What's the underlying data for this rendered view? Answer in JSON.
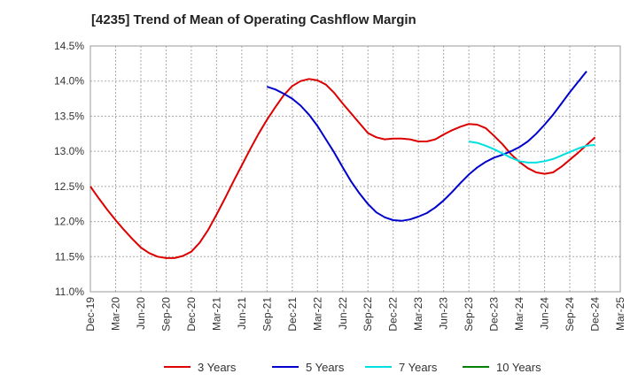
{
  "chart_data": {
    "type": "line",
    "title": "[4235]  Trend of Mean of Operating Cashflow Margin",
    "xlabel": "",
    "ylabel": "",
    "ylim": [
      11.0,
      14.5
    ],
    "y_ticks": [
      11.0,
      11.5,
      12.0,
      12.5,
      13.0,
      13.5,
      14.0,
      14.5
    ],
    "y_tick_labels": [
      "11.0%",
      "11.5%",
      "12.0%",
      "12.5%",
      "13.0%",
      "13.5%",
      "14.0%",
      "14.5%"
    ],
    "x_ticks": [
      "Dec-19",
      "Mar-20",
      "Jun-20",
      "Sep-20",
      "Dec-20",
      "Mar-21",
      "Jun-21",
      "Sep-21",
      "Dec-21",
      "Mar-22",
      "Jun-22",
      "Sep-22",
      "Dec-22",
      "Mar-23",
      "Jun-23",
      "Sep-23",
      "Dec-23",
      "Mar-24",
      "Jun-24",
      "Sep-24",
      "Dec-24",
      "Mar-25"
    ],
    "grid": true,
    "legend_position": "bottom",
    "series": [
      {
        "name": "3 Years",
        "color": "#dd0000",
        "values": [
          [
            "Dec-19",
            12.5
          ],
          [
            "Jan-20",
            12.33
          ],
          [
            "Feb-20",
            12.17
          ],
          [
            "Mar-20",
            12.02
          ],
          [
            "Apr-20",
            11.88
          ],
          [
            "May-20",
            11.75
          ],
          [
            "Jun-20",
            11.63
          ],
          [
            "Jul-20",
            11.55
          ],
          [
            "Aug-20",
            11.5
          ],
          [
            "Sep-20",
            11.48
          ],
          [
            "Oct-20",
            11.48
          ],
          [
            "Nov-20",
            11.51
          ],
          [
            "Dec-20",
            11.57
          ],
          [
            "Jan-21",
            11.7
          ],
          [
            "Feb-21",
            11.88
          ],
          [
            "Mar-21",
            12.1
          ],
          [
            "Apr-21",
            12.33
          ],
          [
            "May-21",
            12.57
          ],
          [
            "Jun-21",
            12.8
          ],
          [
            "Jul-21",
            13.03
          ],
          [
            "Aug-21",
            13.25
          ],
          [
            "Sep-21",
            13.45
          ],
          [
            "Oct-21",
            13.63
          ],
          [
            "Nov-21",
            13.8
          ],
          [
            "Dec-21",
            13.93
          ],
          [
            "Jan-22",
            14.0
          ],
          [
            "Feb-22",
            14.03
          ],
          [
            "Mar-22",
            14.01
          ],
          [
            "Apr-22",
            13.95
          ],
          [
            "May-22",
            13.83
          ],
          [
            "Jun-22",
            13.68
          ],
          [
            "Jul-22",
            13.54
          ],
          [
            "Aug-22",
            13.4
          ],
          [
            "Sep-22",
            13.26
          ],
          [
            "Oct-22",
            13.2
          ],
          [
            "Nov-22",
            13.17
          ],
          [
            "Dec-22",
            13.18
          ],
          [
            "Jan-23",
            13.18
          ],
          [
            "Feb-23",
            13.17
          ],
          [
            "Mar-23",
            13.14
          ],
          [
            "Apr-23",
            13.14
          ],
          [
            "May-23",
            13.17
          ],
          [
            "Jun-23",
            13.24
          ],
          [
            "Jul-23",
            13.3
          ],
          [
            "Aug-23",
            13.35
          ],
          [
            "Sep-23",
            13.39
          ],
          [
            "Oct-23",
            13.38
          ],
          [
            "Nov-23",
            13.33
          ],
          [
            "Dec-23",
            13.22
          ],
          [
            "Jan-24",
            13.1
          ],
          [
            "Feb-24",
            12.96
          ],
          [
            "Mar-24",
            12.85
          ],
          [
            "Apr-24",
            12.76
          ],
          [
            "May-24",
            12.7
          ],
          [
            "Jun-24",
            12.68
          ],
          [
            "Jul-24",
            12.7
          ],
          [
            "Aug-24",
            12.78
          ],
          [
            "Sep-24",
            12.88
          ],
          [
            "Oct-24",
            12.98
          ],
          [
            "Nov-24",
            13.09
          ],
          [
            "Dec-24",
            13.2
          ]
        ]
      },
      {
        "name": "5 Years",
        "color": "#0000cc",
        "values": [
          [
            "Sep-21",
            13.92
          ],
          [
            "Oct-21",
            13.88
          ],
          [
            "Nov-21",
            13.82
          ],
          [
            "Dec-21",
            13.75
          ],
          [
            "Jan-22",
            13.65
          ],
          [
            "Feb-22",
            13.52
          ],
          [
            "Mar-22",
            13.36
          ],
          [
            "Apr-22",
            13.17
          ],
          [
            "May-22",
            12.98
          ],
          [
            "Jun-22",
            12.77
          ],
          [
            "Jul-22",
            12.57
          ],
          [
            "Aug-22",
            12.4
          ],
          [
            "Sep-22",
            12.25
          ],
          [
            "Oct-22",
            12.13
          ],
          [
            "Nov-22",
            12.06
          ],
          [
            "Dec-22",
            12.02
          ],
          [
            "Jan-23",
            12.01
          ],
          [
            "Feb-23",
            12.03
          ],
          [
            "Mar-23",
            12.07
          ],
          [
            "Apr-23",
            12.12
          ],
          [
            "May-23",
            12.2
          ],
          [
            "Jun-23",
            12.3
          ],
          [
            "Jul-23",
            12.42
          ],
          [
            "Aug-23",
            12.55
          ],
          [
            "Sep-23",
            12.67
          ],
          [
            "Oct-23",
            12.77
          ],
          [
            "Nov-23",
            12.85
          ],
          [
            "Dec-23",
            12.91
          ],
          [
            "Jan-24",
            12.95
          ],
          [
            "Feb-24",
            13.0
          ],
          [
            "Mar-24",
            13.06
          ],
          [
            "Apr-24",
            13.14
          ],
          [
            "May-24",
            13.25
          ],
          [
            "Jun-24",
            13.38
          ],
          [
            "Jul-24",
            13.52
          ],
          [
            "Aug-24",
            13.68
          ],
          [
            "Sep-24",
            13.84
          ],
          [
            "Oct-24",
            13.99
          ],
          [
            "Nov-24",
            14.14
          ]
        ]
      },
      {
        "name": "7 Years",
        "color": "#00e0e0",
        "values": [
          [
            "Sep-23",
            13.14
          ],
          [
            "Oct-23",
            13.12
          ],
          [
            "Nov-23",
            13.08
          ],
          [
            "Dec-23",
            13.03
          ],
          [
            "Jan-24",
            12.97
          ],
          [
            "Feb-24",
            12.91
          ],
          [
            "Mar-24",
            12.86
          ],
          [
            "Apr-24",
            12.84
          ],
          [
            "May-24",
            12.84
          ],
          [
            "Jun-24",
            12.86
          ],
          [
            "Jul-24",
            12.89
          ],
          [
            "Aug-24",
            12.94
          ],
          [
            "Sep-24",
            12.99
          ],
          [
            "Oct-24",
            13.04
          ],
          [
            "Nov-24",
            13.08
          ],
          [
            "Dec-24",
            13.09
          ]
        ]
      },
      {
        "name": "10 Years",
        "color": "#008000",
        "values": []
      }
    ]
  }
}
